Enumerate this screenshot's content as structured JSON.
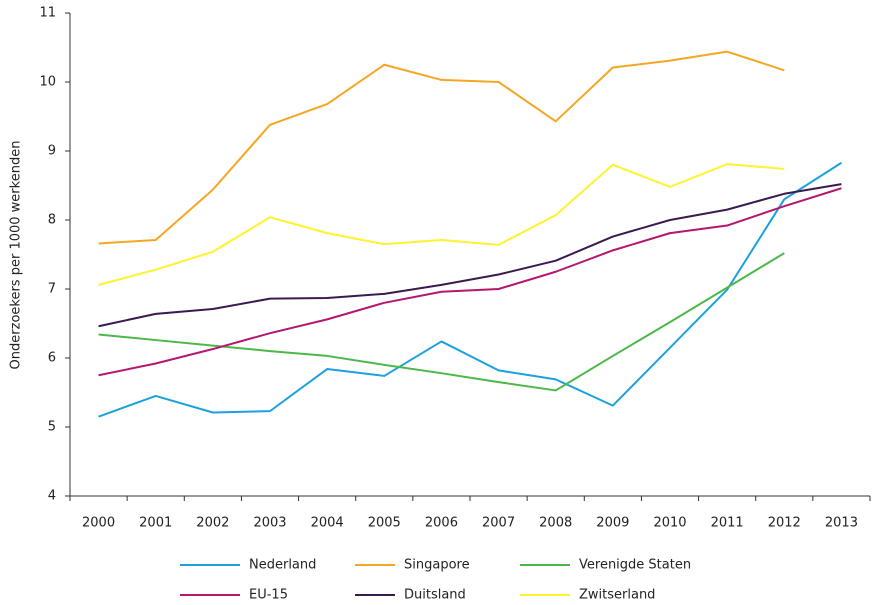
{
  "chart_data": {
    "type": "line",
    "y_label": "Onderzoekers per 1000 werkenden",
    "categories": [
      "2000",
      "2001",
      "2002",
      "2003",
      "2004",
      "2005",
      "2006",
      "2007",
      "2008",
      "2009",
      "2010",
      "2011",
      "2012",
      "2013"
    ],
    "ylim": [
      4,
      11
    ],
    "yticks": [
      4,
      5,
      6,
      7,
      8,
      9,
      10,
      11
    ],
    "grid": false,
    "series": [
      {
        "name": "Nederland",
        "color": "#1ba1dc",
        "values": [
          5.15,
          5.45,
          5.21,
          5.23,
          5.84,
          5.74,
          6.24,
          5.82,
          5.69,
          5.31,
          6.15,
          6.99,
          8.3,
          8.83
        ]
      },
      {
        "name": "Singapore",
        "color": "#f5a623",
        "values": [
          7.66,
          7.71,
          8.44,
          9.38,
          9.68,
          10.25,
          10.03,
          10.0,
          9.43,
          10.21,
          10.31,
          10.44,
          10.17,
          null
        ]
      },
      {
        "name": "Verenigde Staten",
        "color": "#4cb848",
        "values": [
          6.34,
          6.26,
          6.18,
          6.1,
          6.03,
          5.9,
          5.78,
          5.65,
          5.53,
          6.03,
          6.52,
          7.02,
          7.52,
          null
        ]
      },
      {
        "name": "EU-15",
        "color": "#b5176f",
        "values": [
          5.75,
          5.92,
          6.13,
          6.36,
          6.56,
          6.8,
          6.96,
          7.0,
          7.25,
          7.56,
          7.81,
          7.92,
          8.2,
          8.46
        ]
      },
      {
        "name": "Duitsland",
        "color": "#3b1a52",
        "values": [
          6.46,
          6.64,
          6.71,
          6.86,
          6.87,
          6.93,
          7.06,
          7.21,
          7.41,
          7.76,
          8.0,
          8.15,
          8.38,
          8.52
        ]
      },
      {
        "name": "Zwitserland",
        "color": "#fff22e",
        "values": [
          7.06,
          7.28,
          7.54,
          8.04,
          7.81,
          7.65,
          7.71,
          7.64,
          8.07,
          8.8,
          8.48,
          8.81,
          8.74,
          null
        ]
      }
    ]
  }
}
